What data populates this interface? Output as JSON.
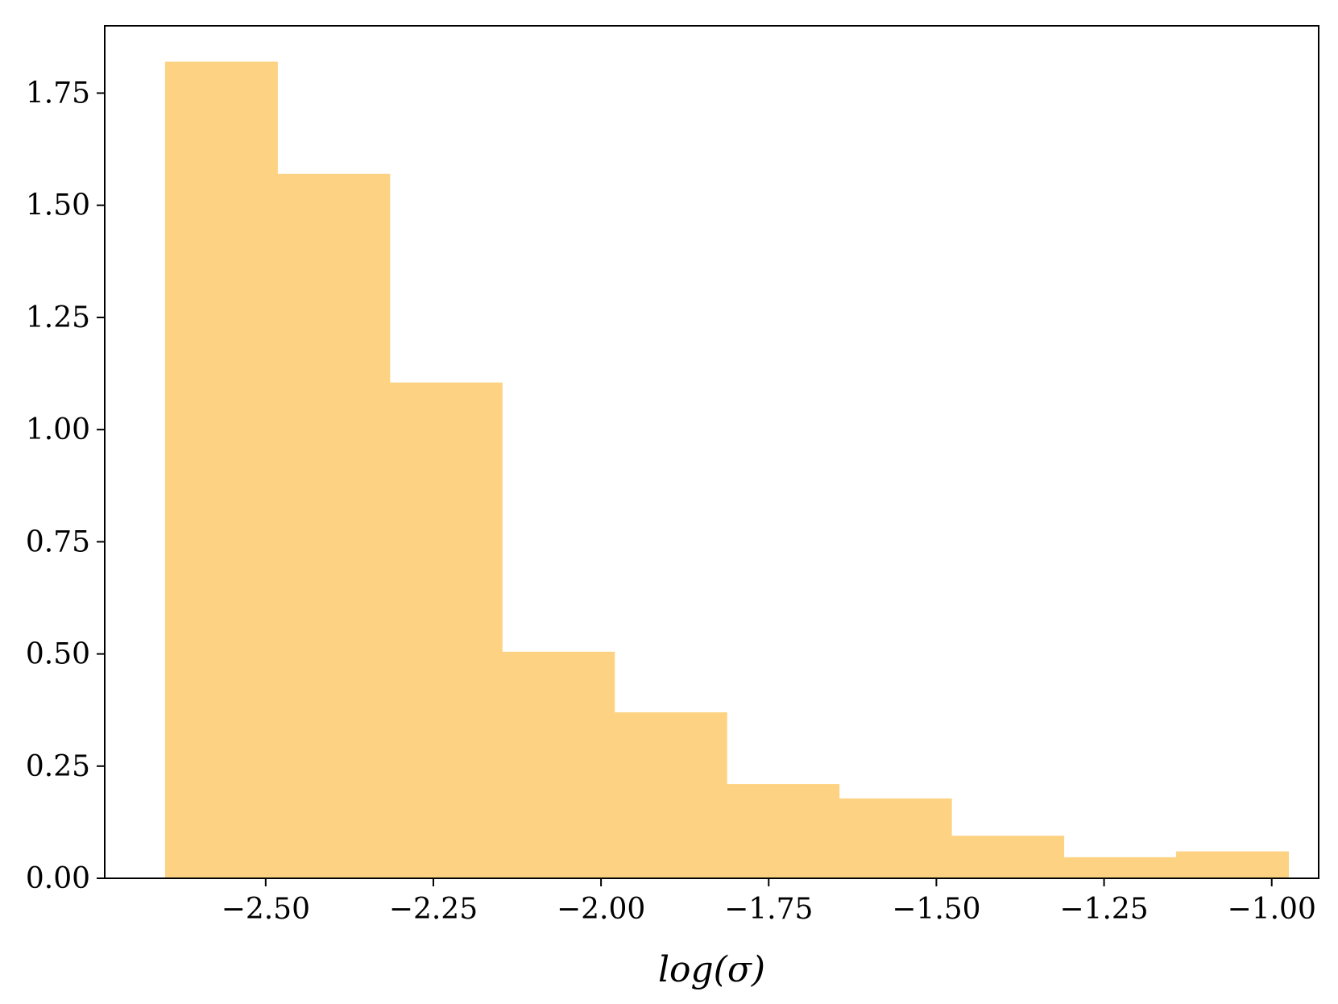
{
  "chart_data": {
    "type": "bar",
    "bin_edges": [
      -2.65,
      -2.4825,
      -2.315,
      -2.1475,
      -1.98,
      -1.8125,
      -1.645,
      -1.4775,
      -1.31,
      -1.1425,
      -0.975
    ],
    "values": [
      1.82,
      1.57,
      1.105,
      0.505,
      0.37,
      0.21,
      0.178,
      0.095,
      0.047,
      0.06
    ],
    "xlabel": "log(σ)",
    "ylabel": "",
    "xlim": [
      -2.74,
      -0.93
    ],
    "ylim": [
      0,
      1.9
    ],
    "xticks": [
      -2.5,
      -2.25,
      -2.0,
      -1.75,
      -1.5,
      -1.25,
      -1.0
    ],
    "xtick_labels": [
      "−2.50",
      "−2.25",
      "−2.00",
      "−1.75",
      "−1.50",
      "−1.25",
      "−1.00"
    ],
    "yticks": [
      0,
      0.25,
      0.5,
      0.75,
      1.0,
      1.25,
      1.5,
      1.75
    ],
    "ytick_labels": [
      "0.00",
      "0.25",
      "0.50",
      "0.75",
      "1.00",
      "1.25",
      "1.50",
      "1.75"
    ],
    "bar_color": "#fdd383",
    "grid": false,
    "legend": "none"
  }
}
